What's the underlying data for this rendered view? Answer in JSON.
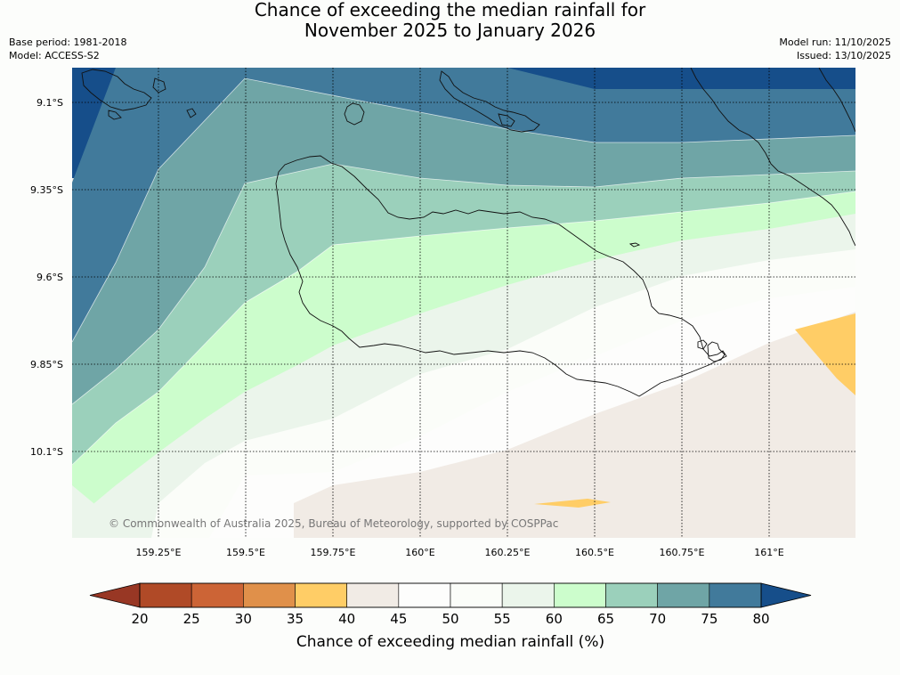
{
  "title": {
    "line1": "Chance of exceeding the median rainfall for",
    "line2": "November 2025 to January 2026"
  },
  "meta_left": {
    "base_period": "Base period: 1981-2018",
    "model": "Model: ACCESS-S2"
  },
  "meta_right": {
    "model_run": "Model run: 11/10/2025",
    "issued": "Issued: 13/10/2025"
  },
  "map": {
    "lat_ticks": [
      "9.1°S",
      "9.35°S",
      "9.6°S",
      "9.85°S",
      "10.1°S"
    ],
    "lon_ticks": [
      "159.25°E",
      "159.5°E",
      "159.75°E",
      "160°E",
      "160.25°E",
      "160.5°E",
      "160.75°E",
      "161°E"
    ],
    "copyright": "© Commonwealth of Australia 2025, Bureau of Meteorology, supported by COSPPac"
  },
  "colorbar": {
    "label": "Chance of exceeding median rainfall (%)",
    "ticks": [
      "20",
      "25",
      "30",
      "35",
      "40",
      "45",
      "50",
      "55",
      "60",
      "65",
      "70",
      "75",
      "80"
    ],
    "colors": [
      "#b04a27",
      "#cc6436",
      "#e0904a",
      "#ffcd66",
      "#f1ebe5",
      "#fdfdfc",
      "#fbfdf9",
      "#ebf5eb",
      "#ccfdcc",
      "#9bd0bb",
      "#6fa5a6",
      "#417a9b"
    ],
    "low_extend_color": "#983724",
    "high_extend_color": "#164e8a"
  },
  "palette": {
    "navy": "#164e8a",
    "steel_blue": "#417a9b",
    "teal": "#6fa5a6",
    "sea_green": "#9bd0bb",
    "pale_green": "#ccfdcc",
    "mint": "#ebf5eb",
    "white": "#fdfdfc",
    "beige": "#f1ebe5",
    "yellow": "#ffcd66"
  }
}
